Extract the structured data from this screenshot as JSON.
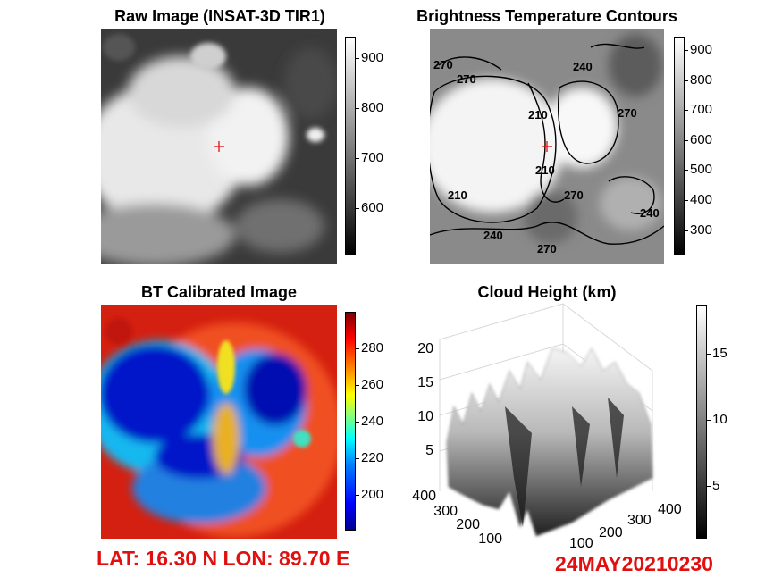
{
  "chart_data": [
    {
      "type": "heatmap",
      "title": "Raw Image (INSAT-3D TIR1)",
      "colormap": "gray",
      "colorbar_ticks": [
        900,
        800,
        700,
        600
      ],
      "marker": "+"
    },
    {
      "type": "heatmap",
      "title": "Brightness Temperature Contours",
      "colormap": "gray",
      "colorbar_ticks": [
        900,
        800,
        700,
        600,
        500,
        400,
        300
      ],
      "contour_levels": [
        210,
        240,
        270
      ],
      "marker": "+"
    },
    {
      "type": "heatmap",
      "title": "BT Calibrated Image",
      "colormap": "jet",
      "colorbar_ticks": [
        280,
        260,
        240,
        220,
        200
      ]
    },
    {
      "type": "surface",
      "title": "Cloud Height (km)",
      "z_ticks": [
        20,
        15,
        10,
        5
      ],
      "x_ticks": [
        100,
        200,
        300,
        400
      ],
      "y_ticks": [
        100,
        200,
        300,
        400
      ],
      "colormap": "gray",
      "colorbar_ticks": [
        15,
        10,
        5
      ]
    }
  ],
  "footer": {
    "location": "LAT: 16.30 N  LON: 89.70 E",
    "timestamp": "24MAY20210230"
  },
  "colors": {
    "annotation_red": "#e01010"
  }
}
